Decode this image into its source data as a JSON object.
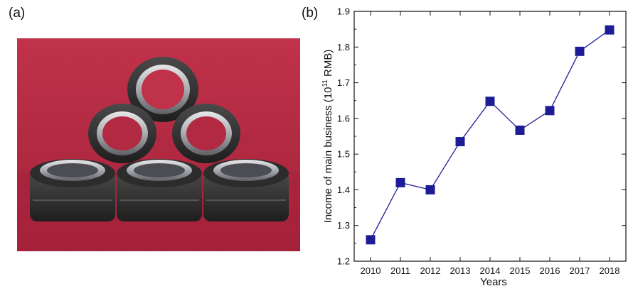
{
  "panels": {
    "a_label": "(a)",
    "b_label": "(b)"
  },
  "colors": {
    "series": "#1c1c96",
    "background_photo": "#b5273f"
  },
  "chart_data": {
    "type": "line",
    "title": "",
    "xlabel": "Years",
    "ylabel": "Income of main business (10¹¹ RMB)",
    "ylabel_parts": {
      "prefix": "Income of main business (10",
      "sup": "11",
      "suffix": " RMB)"
    },
    "x": [
      "2010",
      "2011",
      "2012",
      "2013",
      "2014",
      "2015",
      "2016",
      "2017",
      "2018"
    ],
    "series": [
      {
        "values": [
          1.26,
          1.42,
          1.4,
          1.535,
          1.648,
          1.567,
          1.622,
          1.788,
          1.848
        ]
      }
    ],
    "ylim": [
      1.2,
      1.9
    ],
    "yticks": [
      "1.2",
      "1.3",
      "1.4",
      "1.5",
      "1.6",
      "1.7",
      "1.8",
      "1.9"
    ],
    "marker": "square",
    "grid": false
  }
}
